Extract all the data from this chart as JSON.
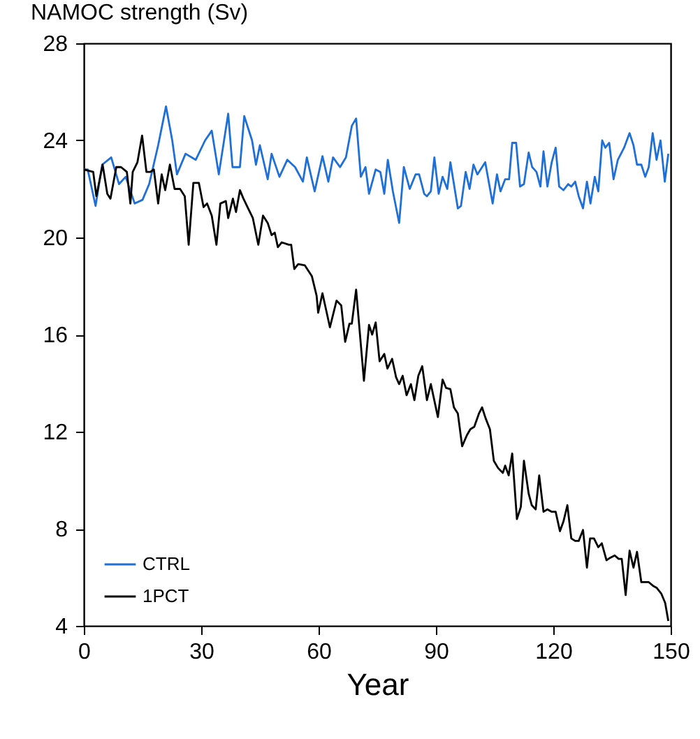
{
  "chart_data": {
    "type": "line",
    "title": "NAMOC strength (Sv)",
    "xlabel": "Year",
    "xlim": [
      0,
      150
    ],
    "xticks": [
      0,
      30,
      60,
      90,
      120,
      150
    ],
    "ylim": [
      4,
      28
    ],
    "yticks": [
      4,
      8,
      12,
      16,
      20,
      24,
      28
    ],
    "legend": "bottom left",
    "grid": false,
    "series": [
      {
        "name": "CTRL",
        "color": "#1f6fd8",
        "x": [
          0,
          1,
          3,
          4.7,
          7,
          9,
          10.7,
          13,
          15,
          16.7,
          19,
          21,
          22.6,
          23.8,
          26,
          28.6,
          31,
          32.7,
          34.5,
          36.9,
          38,
          39.9,
          41,
          43,
          44,
          45,
          47,
          48,
          50,
          52,
          54,
          56,
          57,
          59,
          61,
          62.5,
          63.7,
          65.5,
          67,
          68.5,
          69.6,
          70.8,
          72,
          72.9,
          74.6,
          75.8,
          76.8,
          77.7,
          79,
          80.6,
          81.8,
          83.3,
          84.8,
          85.7,
          87,
          87.7,
          88.7,
          89.6,
          90.7,
          91.7,
          92.9,
          93.7,
          95.6,
          96.4,
          97.6,
          98.6,
          99.6,
          100.6,
          102.6,
          104.5,
          105.6,
          106.5,
          107.7,
          108.7,
          109.5,
          110.5,
          111.5,
          112.5,
          113.7,
          114.6,
          115.7,
          116.7,
          117.5,
          118.5,
          119.6,
          120.6,
          121.5,
          122.6,
          123.8,
          124.6,
          125.6,
          126.5,
          127.6,
          128.6,
          129.5,
          130.6,
          131.5,
          132.5,
          133.3,
          134.3,
          135.4,
          136.5,
          138.1,
          139.5,
          140.5,
          141.4,
          142.5,
          143.5,
          144.4,
          145.4,
          146.4,
          147.4,
          148.5,
          149.4
        ],
        "values": [
          22.8,
          22.8,
          21.3,
          23.0,
          23.3,
          22.2,
          22.5,
          21.4,
          21.55,
          22.2,
          23.8,
          25.4,
          24.0,
          22.6,
          23.45,
          23.2,
          24.0,
          24.4,
          22.6,
          25.1,
          22.9,
          22.9,
          25.0,
          24.0,
          23.0,
          23.8,
          22.4,
          23.45,
          22.5,
          23.2,
          22.9,
          22.3,
          23.3,
          21.9,
          23.35,
          22.3,
          23.3,
          22.9,
          23.3,
          24.6,
          24.9,
          22.5,
          22.9,
          21.8,
          22.8,
          22.7,
          21.8,
          23.2,
          21.9,
          20.6,
          22.9,
          22.0,
          22.6,
          22.6,
          21.8,
          21.7,
          21.9,
          23.3,
          21.8,
          22.5,
          22.0,
          23.1,
          21.2,
          21.3,
          22.7,
          22.0,
          23.0,
          22.6,
          23.1,
          21.4,
          22.6,
          21.9,
          22.4,
          22.4,
          23.9,
          23.9,
          22.1,
          22.2,
          23.5,
          22.9,
          22.7,
          22.1,
          23.55,
          22.1,
          23.1,
          23.7,
          22.1,
          21.95,
          22.2,
          22.1,
          22.3,
          21.7,
          21.2,
          22.3,
          21.4,
          22.5,
          21.9,
          24.0,
          23.7,
          23.9,
          22.4,
          23.2,
          23.7,
          24.3,
          23.8,
          23.0,
          23.0,
          22.5,
          22.9,
          24.3,
          23.2,
          24.0,
          22.3,
          23.45
        ]
      },
      {
        "name": "1PCT",
        "color": "#000000",
        "x": [
          0,
          1.2,
          2.4,
          3.2,
          4.8,
          6,
          6.8,
          8.3,
          9.5,
          11,
          11.9,
          12.5,
          13.7,
          14.9,
          16,
          17,
          17.9,
          19,
          19.9,
          20.8,
          22,
          23.2,
          24.6,
          25.8,
          26.8,
          28,
          29.4,
          30.6,
          31.5,
          32.7,
          33.9,
          34.9,
          36.3,
          36.9,
          38.1,
          38.9,
          39.9,
          40.8,
          42,
          43.2,
          44.6,
          45.8,
          47,
          48,
          48.8,
          49.6,
          50.6,
          52.4,
          53,
          53.8,
          54.8,
          56.5,
          58.3,
          59.5,
          59.9,
          61,
          62.9,
          64.6,
          65.8,
          66.8,
          67.9,
          68.5,
          69.6,
          71.6,
          72.9,
          73.7,
          74.6,
          75.6,
          76.8,
          77.6,
          78.8,
          79.8,
          80.6,
          81.5,
          82.5,
          83.6,
          84.5,
          85.5,
          86.5,
          87.7,
          88.7,
          90.5,
          91.7,
          92.6,
          93.7,
          94.6,
          95.6,
          96.7,
          97.9,
          98.8,
          99.8,
          101,
          101.8,
          102.7,
          103.8,
          104.8,
          105.9,
          107.1,
          107.7,
          108.6,
          109.5,
          110.7,
          111.7,
          112.5,
          113.7,
          114.5,
          115.5,
          116.4,
          117.5,
          118.5,
          119.6,
          120.6,
          121.7,
          122.6,
          123.6,
          124.6,
          125.6,
          126.5,
          127.6,
          128.6,
          129.4,
          130.4,
          131.5,
          132.4,
          133.6,
          134.5,
          135.7,
          136.7,
          137.5,
          138.5,
          139.5,
          140.5,
          141.4,
          142.5,
          143.4,
          144.4,
          145.5,
          146.4,
          147.6,
          148.6,
          149.4
        ],
        "values": [
          22.8,
          22.75,
          22.7,
          21.7,
          23.0,
          21.8,
          21.6,
          22.9,
          22.9,
          22.7,
          21.4,
          22.7,
          23.1,
          24.2,
          22.7,
          22.7,
          22.8,
          21.4,
          22.6,
          21.95,
          23.0,
          22.0,
          22.0,
          21.7,
          19.7,
          22.25,
          22.25,
          21.25,
          21.4,
          20.9,
          19.7,
          21.4,
          21.5,
          20.8,
          21.6,
          21.05,
          21.95,
          21.6,
          21.2,
          20.8,
          19.7,
          20.9,
          20.6,
          20.1,
          20.2,
          19.6,
          19.8,
          19.7,
          19.7,
          18.7,
          18.9,
          18.85,
          18.4,
          17.6,
          16.9,
          17.7,
          16.3,
          17.4,
          17.2,
          15.7,
          16.45,
          16.45,
          17.85,
          14.1,
          16.4,
          16.0,
          16.5,
          14.9,
          15.2,
          14.6,
          15.0,
          14.25,
          13.96,
          14.3,
          13.5,
          13.96,
          13.3,
          14.3,
          14.7,
          13.3,
          13.96,
          12.6,
          14.15,
          13.8,
          13.75,
          13.0,
          12.75,
          11.4,
          11.85,
          12.1,
          12.2,
          12.75,
          13.0,
          12.55,
          12.1,
          10.8,
          10.5,
          10.3,
          10.6,
          10.2,
          11.1,
          8.4,
          8.9,
          10.8,
          9.45,
          8.97,
          8.8,
          10.2,
          8.7,
          8.8,
          8.7,
          8.7,
          7.9,
          8.3,
          8.97,
          7.6,
          7.5,
          7.5,
          7.95,
          6.4,
          7.6,
          7.6,
          7.24,
          7.4,
          6.7,
          6.8,
          6.9,
          6.76,
          6.76,
          5.27,
          7.1,
          6.4,
          7.05,
          5.8,
          5.8,
          5.8,
          5.65,
          5.57,
          5.33,
          4.94,
          4.2
        ]
      }
    ]
  }
}
